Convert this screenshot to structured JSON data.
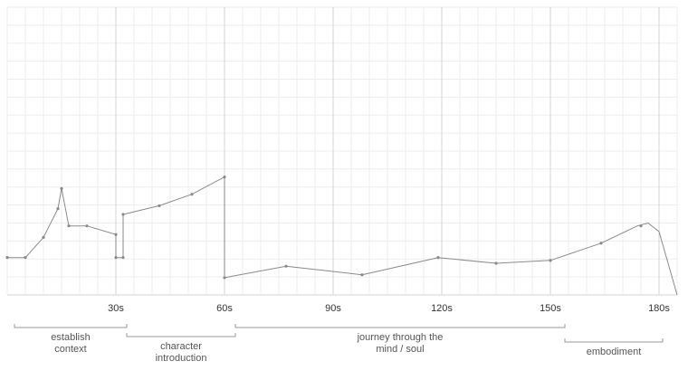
{
  "chart_data": {
    "type": "line",
    "xlim": [
      0,
      185
    ],
    "ylim": [
      0,
      100
    ],
    "grid": true,
    "x_ticks": [
      {
        "x": 30,
        "label": "30s"
      },
      {
        "x": 60,
        "label": "60s"
      },
      {
        "x": 90,
        "label": "90s"
      },
      {
        "x": 120,
        "label": "120s"
      },
      {
        "x": 150,
        "label": "150s"
      },
      {
        "x": 180,
        "label": "180s"
      }
    ],
    "series": [
      {
        "points": [
          [
            0,
            13
          ],
          [
            5,
            13
          ],
          [
            10,
            20
          ],
          [
            14,
            30
          ],
          [
            15,
            37
          ],
          [
            17,
            24
          ],
          [
            22,
            24
          ],
          [
            30,
            21
          ],
          [
            30,
            13
          ],
          [
            32,
            13
          ],
          [
            32,
            28
          ],
          [
            42,
            31
          ],
          [
            51,
            35
          ],
          [
            60,
            41
          ],
          [
            60,
            6
          ],
          [
            77,
            10
          ],
          [
            98,
            7
          ],
          [
            119,
            13
          ],
          [
            135,
            11
          ],
          [
            150,
            12
          ],
          [
            164,
            18
          ],
          [
            174,
            24
          ],
          [
            177,
            25
          ],
          [
            180,
            22
          ],
          [
            185,
            0
          ]
        ],
        "markers": [
          [
            0,
            13
          ],
          [
            5,
            13
          ],
          [
            10,
            20
          ],
          [
            14,
            30
          ],
          [
            15,
            37
          ],
          [
            17,
            24
          ],
          [
            22,
            24
          ],
          [
            30,
            21
          ],
          [
            30,
            13
          ],
          [
            32,
            13
          ],
          [
            32,
            28
          ],
          [
            42,
            31
          ],
          [
            51,
            35
          ],
          [
            60,
            41
          ],
          [
            60,
            6
          ],
          [
            77,
            10
          ],
          [
            98,
            7
          ],
          [
            119,
            13
          ],
          [
            135,
            11
          ],
          [
            150,
            12
          ],
          [
            164,
            18
          ],
          [
            175,
            24
          ]
        ]
      }
    ],
    "segments": [
      {
        "start": 2,
        "end": 33,
        "lines": [
          "establish",
          "context"
        ]
      },
      {
        "start": 33,
        "end": 63,
        "lines": [
          "character",
          "introduction"
        ]
      },
      {
        "start": 63,
        "end": 154,
        "lines": [
          "journey through the",
          "mind / soul"
        ]
      },
      {
        "start": 154,
        "end": 181,
        "lines": [
          "embodiment"
        ]
      }
    ]
  }
}
